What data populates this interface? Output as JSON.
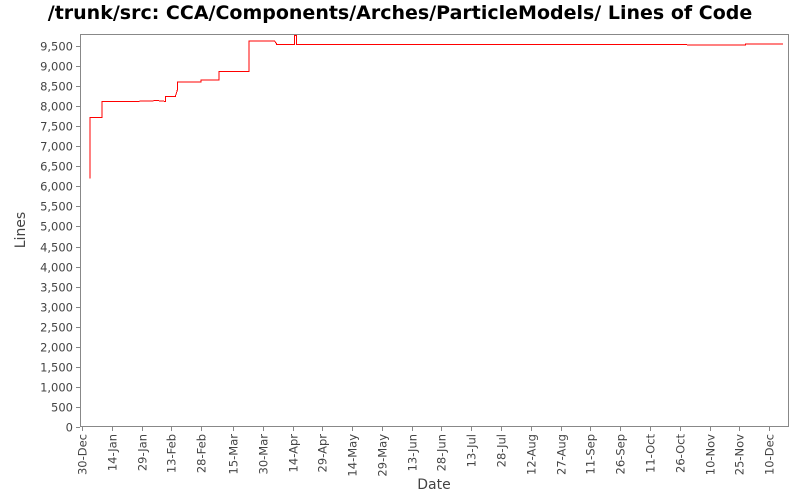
{
  "chart_data": {
    "type": "line",
    "title": "/trunk/src: CCA/Components/Arches/ParticleModels/ Lines of Code",
    "xlabel": "Date",
    "ylabel": "Lines",
    "ylim": [
      0,
      9800
    ],
    "xlim": [
      "2007-12-29",
      "2008-12-20"
    ],
    "grid": false,
    "line_color": "#ff0000",
    "yticks": [
      0,
      500,
      1000,
      1500,
      2000,
      2500,
      3000,
      3500,
      4000,
      4500,
      5000,
      5500,
      6000,
      6500,
      7000,
      7500,
      8000,
      8500,
      9000,
      9500
    ],
    "ytick_labels": [
      "0",
      "500",
      "1,000",
      "1,500",
      "2,000",
      "2,500",
      "3,000",
      "3,500",
      "4,000",
      "4,500",
      "5,000",
      "5,500",
      "6,000",
      "6,500",
      "7,000",
      "7,500",
      "8,000",
      "8,500",
      "9,000",
      "9,500"
    ],
    "xticks": [
      "2007-12-30",
      "2008-01-14",
      "2008-01-29",
      "2008-02-13",
      "2008-02-28",
      "2008-03-15",
      "2008-03-30",
      "2008-04-14",
      "2008-04-29",
      "2008-05-14",
      "2008-05-29",
      "2008-06-13",
      "2008-06-28",
      "2008-07-13",
      "2008-07-28",
      "2008-08-12",
      "2008-08-27",
      "2008-09-11",
      "2008-09-26",
      "2008-10-11",
      "2008-10-26",
      "2008-11-10",
      "2008-11-25",
      "2008-12-10"
    ],
    "xtick_labels": [
      "30-Dec",
      "14-Jan",
      "29-Jan",
      "13-Feb",
      "28-Feb",
      "15-Mar",
      "30-Mar",
      "14-Apr",
      "29-Apr",
      "14-May",
      "29-May",
      "13-Jun",
      "28-Jun",
      "13-Jul",
      "28-Jul",
      "12-Aug",
      "27-Aug",
      "11-Sep",
      "26-Sep",
      "11-Oct",
      "26-Oct",
      "10-Nov",
      "25-Nov",
      "10-Dec"
    ],
    "series": [
      {
        "x": [
          "2008-01-03",
          "2008-01-03",
          "2008-01-09",
          "2008-01-09",
          "2008-01-26",
          "2008-02-06",
          "2008-02-10",
          "2008-02-10",
          "2008-02-15",
          "2008-02-16",
          "2008-02-16",
          "2008-02-28",
          "2008-02-28",
          "2008-03-08",
          "2008-03-08",
          "2008-03-23",
          "2008-03-23",
          "2008-04-05",
          "2008-04-06",
          "2008-04-06",
          "2008-04-15",
          "2008-04-15",
          "2008-04-16",
          "2008-04-16",
          "2008-06-01",
          "2008-08-05",
          "2008-11-10",
          "2008-11-28",
          "2008-11-28",
          "2008-12-17"
        ],
        "y": [
          6200,
          7720,
          7720,
          8120,
          8120,
          8140,
          8120,
          8240,
          8240,
          8400,
          8600,
          8600,
          8650,
          8650,
          8870,
          8870,
          9620,
          9620,
          9560,
          9540,
          9540,
          9760,
          9760,
          9540,
          9540,
          9540,
          9530,
          9530,
          9550,
          9550
        ]
      }
    ]
  }
}
